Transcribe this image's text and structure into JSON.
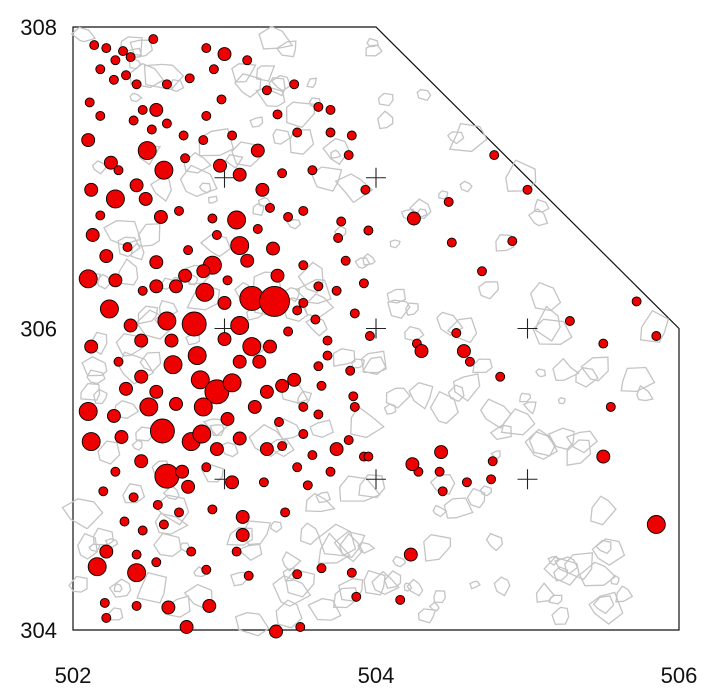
{
  "chart_data": {
    "type": "scatter",
    "title": "",
    "xlabel": "",
    "ylabel": "",
    "xlim": [
      502,
      506
    ],
    "ylim": [
      304,
      308
    ],
    "x_ticks": [
      {
        "value": 502,
        "label": "502"
      },
      {
        "value": 504,
        "label": "504"
      },
      {
        "value": 506,
        "label": "506"
      }
    ],
    "y_ticks": [
      {
        "value": 304,
        "label": "304"
      },
      {
        "value": 306,
        "label": "306"
      },
      {
        "value": 308,
        "label": "308"
      }
    ],
    "boundary": [
      [
        502,
        308
      ],
      [
        504,
        308
      ],
      [
        506,
        306
      ],
      [
        506,
        304
      ],
      [
        502,
        304
      ]
    ],
    "reference_crosses": [
      [
        503,
        307
      ],
      [
        504,
        307
      ],
      [
        503,
        306
      ],
      [
        504,
        306
      ],
      [
        505,
        306
      ],
      [
        503,
        305
      ],
      [
        504,
        305
      ],
      [
        505,
        305
      ]
    ],
    "colors": {
      "points": "#ee0000",
      "point_edge": "#000000",
      "outlines": "#c4c4c4",
      "frame": "#111111"
    },
    "points": [
      [
        502.14,
        307.88,
        1
      ],
      [
        502.22,
        307.86,
        1
      ],
      [
        502.33,
        307.84,
        1
      ],
      [
        502.53,
        307.92,
        1
      ],
      [
        502.18,
        307.72,
        1
      ],
      [
        502.27,
        307.65,
        1
      ],
      [
        502.35,
        307.68,
        1
      ],
      [
        502.46,
        307.45,
        1
      ],
      [
        502.55,
        307.45,
        2
      ],
      [
        502.77,
        307.66,
        1
      ],
      [
        502.93,
        307.72,
        1
      ],
      [
        502.88,
        307.41,
        1
      ],
      [
        502.62,
        307.36,
        1
      ],
      [
        502.11,
        307.5,
        1
      ],
      [
        502.18,
        307.41,
        1
      ],
      [
        502.4,
        307.38,
        1
      ],
      [
        502.52,
        307.32,
        1
      ],
      [
        502.73,
        307.28,
        1
      ],
      [
        502.98,
        307.52,
        1
      ],
      [
        503.28,
        307.58,
        1
      ],
      [
        503.46,
        307.62,
        1
      ],
      [
        503.62,
        307.47,
        1
      ],
      [
        503.7,
        307.3,
        1
      ],
      [
        503.84,
        307.28,
        1
      ],
      [
        502.1,
        307.25,
        2
      ],
      [
        502.25,
        307.1,
        2
      ],
      [
        502.49,
        307.18,
        3
      ],
      [
        502.6,
        307.05,
        3
      ],
      [
        502.74,
        307.13,
        1
      ],
      [
        502.97,
        307.08,
        2
      ],
      [
        503.1,
        307.02,
        2
      ],
      [
        503.38,
        307.03,
        1
      ],
      [
        503.58,
        307.05,
        1
      ],
      [
        503.82,
        307.15,
        1
      ],
      [
        502.12,
        306.92,
        2
      ],
      [
        502.28,
        306.86,
        3
      ],
      [
        502.48,
        306.86,
        2
      ],
      [
        502.7,
        306.78,
        1
      ],
      [
        502.92,
        306.73,
        1
      ],
      [
        503.08,
        306.72,
        3
      ],
      [
        503.3,
        306.8,
        1
      ],
      [
        503.52,
        306.78,
        1
      ],
      [
        503.77,
        306.71,
        1
      ],
      [
        502.13,
        306.62,
        2
      ],
      [
        502.36,
        306.54,
        1
      ],
      [
        502.55,
        306.44,
        2
      ],
      [
        502.76,
        306.52,
        1
      ],
      [
        502.92,
        306.42,
        3
      ],
      [
        503.1,
        306.55,
        3
      ],
      [
        503.32,
        306.53,
        2
      ],
      [
        502.1,
        306.33,
        3
      ],
      [
        502.28,
        306.32,
        2
      ],
      [
        502.46,
        306.25,
        1
      ],
      [
        502.68,
        306.28,
        2
      ],
      [
        502.87,
        306.24,
        3
      ],
      [
        503.0,
        306.17,
        2
      ],
      [
        503.18,
        306.2,
        4
      ],
      [
        503.33,
        306.18,
        5
      ],
      [
        503.52,
        306.17,
        1
      ],
      [
        503.74,
        306.25,
        1
      ],
      [
        502.24,
        306.13,
        3
      ],
      [
        502.38,
        306.02,
        2
      ],
      [
        502.62,
        306.05,
        3
      ],
      [
        502.8,
        306.03,
        4
      ],
      [
        503.0,
        305.93,
        2
      ],
      [
        503.18,
        305.88,
        3
      ],
      [
        503.42,
        305.98,
        1
      ],
      [
        503.6,
        306.06,
        1
      ],
      [
        503.86,
        306.1,
        1
      ],
      [
        502.12,
        305.88,
        2
      ],
      [
        502.3,
        305.78,
        1
      ],
      [
        502.45,
        305.68,
        2
      ],
      [
        502.66,
        305.76,
        3
      ],
      [
        502.84,
        305.66,
        3
      ],
      [
        502.95,
        305.58,
        4
      ],
      [
        503.05,
        305.64,
        3
      ],
      [
        503.23,
        305.78,
        2
      ],
      [
        503.46,
        305.66,
        2
      ],
      [
        503.68,
        305.82,
        1
      ],
      [
        503.83,
        305.72,
        1
      ],
      [
        502.1,
        305.45,
        3
      ],
      [
        502.27,
        305.42,
        2
      ],
      [
        502.5,
        305.48,
        3
      ],
      [
        502.68,
        305.5,
        2
      ],
      [
        502.86,
        305.48,
        3
      ],
      [
        503.02,
        305.4,
        2
      ],
      [
        503.2,
        305.48,
        2
      ],
      [
        503.36,
        305.38,
        1
      ],
      [
        503.62,
        305.43,
        1
      ],
      [
        503.85,
        305.55,
        1
      ],
      [
        502.12,
        305.25,
        3
      ],
      [
        502.32,
        305.28,
        2
      ],
      [
        502.59,
        305.32,
        4
      ],
      [
        502.78,
        305.25,
        3
      ],
      [
        502.95,
        305.2,
        2
      ],
      [
        503.1,
        305.27,
        2
      ],
      [
        503.38,
        305.22,
        1
      ],
      [
        503.58,
        305.16,
        1
      ],
      [
        503.82,
        305.26,
        1
      ],
      [
        502.28,
        305.05,
        1
      ],
      [
        502.45,
        305.12,
        2
      ],
      [
        502.62,
        305.02,
        4
      ],
      [
        502.76,
        304.95,
        2
      ],
      [
        502.88,
        305.08,
        1
      ],
      [
        503.05,
        304.98,
        2
      ],
      [
        503.26,
        304.98,
        1
      ],
      [
        503.48,
        305.08,
        1
      ],
      [
        503.7,
        305.05,
        1
      ],
      [
        503.92,
        305.15,
        1
      ],
      [
        502.2,
        304.92,
        1
      ],
      [
        502.4,
        304.88,
        1
      ],
      [
        502.56,
        304.83,
        1
      ],
      [
        502.7,
        304.78,
        1
      ],
      [
        502.92,
        304.8,
        1
      ],
      [
        503.12,
        304.75,
        2
      ],
      [
        503.4,
        304.78,
        1
      ],
      [
        502.34,
        304.72,
        1
      ],
      [
        502.46,
        304.66,
        1
      ],
      [
        502.6,
        304.7,
        1
      ],
      [
        503.12,
        304.63,
        2
      ],
      [
        502.22,
        304.52,
        2
      ],
      [
        502.42,
        304.5,
        1
      ],
      [
        502.78,
        304.52,
        1
      ],
      [
        503.08,
        304.52,
        1
      ],
      [
        502.16,
        304.42,
        3
      ],
      [
        502.42,
        304.38,
        3
      ],
      [
        502.55,
        304.45,
        1
      ],
      [
        502.88,
        304.4,
        1
      ],
      [
        503.16,
        304.36,
        1
      ],
      [
        503.48,
        304.37,
        1
      ],
      [
        503.64,
        304.41,
        1
      ],
      [
        503.84,
        304.38,
        1
      ],
      [
        502.21,
        304.18,
        1
      ],
      [
        502.42,
        304.16,
        1
      ],
      [
        502.63,
        304.15,
        2
      ],
      [
        502.9,
        304.16,
        2
      ],
      [
        502.22,
        304.08,
        1
      ],
      [
        502.75,
        304.02,
        2
      ],
      [
        503.34,
        303.99,
        2
      ],
      [
        503.5,
        304.02,
        1
      ],
      [
        503.87,
        304.22,
        1
      ],
      [
        504.16,
        304.2,
        1
      ],
      [
        504.23,
        304.5,
        2
      ],
      [
        504.28,
        305.05,
        1
      ],
      [
        504.24,
        305.1,
        2
      ],
      [
        504.42,
        305.05,
        1
      ],
      [
        504.44,
        304.92,
        1
      ],
      [
        504.6,
        304.98,
        1
      ],
      [
        504.43,
        305.18,
        2
      ],
      [
        504.76,
        305.0,
        1
      ],
      [
        504.77,
        305.12,
        1
      ],
      [
        504.27,
        305.9,
        1
      ],
      [
        504.3,
        305.85,
        2
      ],
      [
        504.53,
        305.97,
        1
      ],
      [
        504.58,
        305.85,
        2
      ],
      [
        504.62,
        305.78,
        1
      ],
      [
        504.82,
        305.68,
        1
      ],
      [
        504.25,
        306.73,
        2
      ],
      [
        504.5,
        306.57,
        1
      ],
      [
        504.48,
        306.84,
        1
      ],
      [
        504.7,
        306.38,
        1
      ],
      [
        504.9,
        306.58,
        1
      ],
      [
        505.28,
        306.05,
        1
      ],
      [
        505.5,
        305.9,
        1
      ],
      [
        505.55,
        305.48,
        1
      ],
      [
        505.5,
        305.15,
        2
      ],
      [
        505.85,
        304.7,
        3
      ],
      [
        505.85,
        305.95,
        1
      ],
      [
        505.72,
        306.18,
        1
      ],
      [
        504.78,
        307.15,
        1
      ],
      [
        505.0,
        306.92,
        1
      ],
      [
        503.48,
        307.3,
        1
      ],
      [
        503.7,
        307.45,
        1
      ],
      [
        503.93,
        306.92,
        1
      ],
      [
        503.95,
        306.65,
        1
      ],
      [
        503.8,
        306.45,
        1
      ],
      [
        503.75,
        306.6,
        1
      ],
      [
        503.92,
        306.3,
        1
      ],
      [
        503.96,
        305.95,
        1
      ],
      [
        503.68,
        305.92,
        1
      ],
      [
        503.64,
        305.62,
        1
      ],
      [
        503.86,
        305.48,
        1
      ],
      [
        503.74,
        305.2,
        2
      ],
      [
        503.95,
        305.15,
        1
      ],
      [
        503.55,
        304.96,
        1
      ],
      [
        503.28,
        305.2,
        2
      ],
      [
        502.85,
        305.3,
        3
      ],
      [
        502.72,
        305.05,
        2
      ],
      [
        502.55,
        305.58,
        2
      ],
      [
        502.35,
        305.6,
        2
      ],
      [
        502.45,
        305.92,
        2
      ],
      [
        502.65,
        305.92,
        2
      ],
      [
        502.82,
        305.82,
        3
      ],
      [
        503.1,
        305.78,
        2
      ],
      [
        503.28,
        305.58,
        2
      ],
      [
        503.1,
        306.02,
        3
      ],
      [
        502.86,
        306.38,
        2
      ],
      [
        502.95,
        306.62,
        1
      ],
      [
        503.25,
        306.92,
        2
      ],
      [
        503.35,
        306.35,
        2
      ],
      [
        503.52,
        306.42,
        1
      ],
      [
        503.62,
        306.28,
        1
      ],
      [
        503.48,
        306.12,
        1
      ],
      [
        503.62,
        305.75,
        1
      ],
      [
        503.3,
        305.88,
        2
      ],
      [
        503.38,
        305.62,
        2
      ],
      [
        503.52,
        305.48,
        1
      ],
      [
        503.52,
        305.3,
        1
      ],
      [
        502.58,
        306.74,
        2
      ],
      [
        502.42,
        306.95,
        2
      ],
      [
        502.3,
        307.05,
        1
      ],
      [
        502.18,
        306.75,
        1
      ],
      [
        502.22,
        306.48,
        2
      ],
      [
        502.55,
        306.28,
        2
      ],
      [
        502.74,
        306.35,
        2
      ],
      [
        503.42,
        306.74,
        1
      ],
      [
        503.15,
        306.45,
        2
      ],
      [
        503.02,
        306.32,
        1
      ],
      [
        503.22,
        306.66,
        1
      ],
      [
        502.86,
        307.25,
        1
      ],
      [
        503.05,
        307.28,
        1
      ],
      [
        503.22,
        307.18,
        2
      ],
      [
        503.35,
        307.42,
        1
      ],
      [
        502.62,
        307.62,
        1
      ],
      [
        502.42,
        307.62,
        1
      ],
      [
        502.28,
        307.78,
        1
      ],
      [
        502.38,
        307.8,
        1
      ],
      [
        502.88,
        307.86,
        1
      ],
      [
        503.0,
        307.82,
        2
      ],
      [
        503.15,
        307.78,
        1
      ]
    ]
  }
}
